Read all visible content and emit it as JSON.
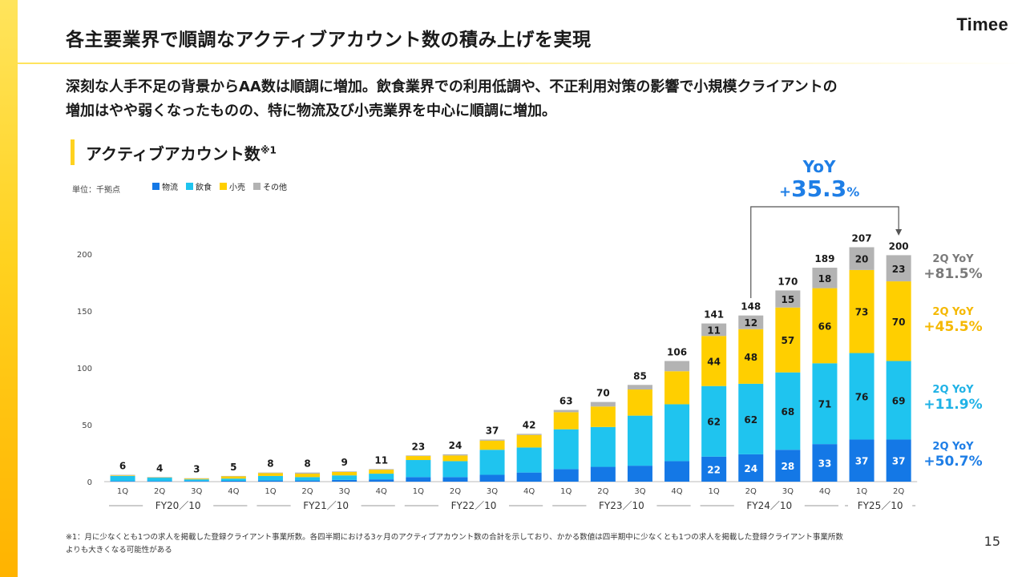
{
  "header": {
    "title": "各主要業界で順調なアクティブアカウント数の積み上げを実現",
    "logo": "Timee"
  },
  "lead": {
    "line1": "深刻な人手不足の背景からAA数は順調に増加。飲食業界での利用低調や、不正利用対策の影響で小規模クライアントの",
    "line2": "増加はやや弱くなったものの、特に物流及び小売業界を中心に順調に増加。"
  },
  "section": {
    "title": "アクティブアカウント数",
    "note": "※1"
  },
  "unit": "単位：千拠点",
  "colors": {
    "logistics": "#1478e6",
    "food": "#1fc4ef",
    "retail": "#ffcf00",
    "other": "#b3b3b3",
    "accent": "#ffd21f",
    "yoy": "#1e7ee6"
  },
  "yoy": {
    "label": "YoY",
    "plus": "+",
    "value": "35.3",
    "percent": "%"
  },
  "side_yoy": [
    {
      "q": "2Q YoY",
      "v": "+81.5%",
      "color": "#7a7a7a"
    },
    {
      "q": "2Q YoY",
      "v": "+45.5%",
      "color": "#f5b800"
    },
    {
      "q": "2Q YoY",
      "v": "+11.9%",
      "color": "#1fb2e6"
    },
    {
      "q": "2Q YoY",
      "v": "+50.7%",
      "color": "#1e7ee6"
    }
  ],
  "chart_data": {
    "type": "bar",
    "stacked": true,
    "ylim": [
      0,
      200
    ],
    "yticks": [
      0,
      50,
      100,
      150,
      200
    ],
    "legend_position": "top-left",
    "categories": [
      "1Q",
      "2Q",
      "3Q",
      "4Q",
      "1Q",
      "2Q",
      "3Q",
      "4Q",
      "1Q",
      "2Q",
      "3Q",
      "4Q",
      "1Q",
      "2Q",
      "3Q",
      "4Q",
      "1Q",
      "2Q",
      "3Q",
      "4Q",
      "1Q",
      "2Q"
    ],
    "groups": [
      {
        "label": "FY20／10",
        "count": 4
      },
      {
        "label": "FY21／10",
        "count": 4
      },
      {
        "label": "FY22／10",
        "count": 4
      },
      {
        "label": "FY23／10",
        "count": 4
      },
      {
        "label": "FY24／10",
        "count": 4
      },
      {
        "label": "FY25／10",
        "count": 2
      }
    ],
    "totals": [
      6,
      4,
      3,
      5,
      8,
      8,
      9,
      11,
      23,
      24,
      37,
      42,
      63,
      70,
      85,
      106,
      141,
      148,
      170,
      189,
      207,
      200
    ],
    "series": [
      {
        "name": "物流",
        "color": "#1478e6",
        "values": [
          0.5,
          0.5,
          0.5,
          0.7,
          1,
          1,
          1.5,
          2,
          4,
          4,
          6,
          8,
          11,
          13,
          14,
          18,
          22,
          24,
          28,
          33,
          37,
          37
        ],
        "labels_from_index": 16
      },
      {
        "name": "飲食",
        "color": "#1fc4ef",
        "values": [
          4.5,
          3,
          1.5,
          2,
          4,
          3,
          4,
          5,
          15,
          14,
          22,
          22,
          35,
          35,
          44,
          50,
          62,
          62,
          68,
          71,
          76,
          69
        ],
        "labels_from_index": 16
      },
      {
        "name": "小売",
        "color": "#ffcf00",
        "values": [
          0.5,
          0.3,
          0.7,
          2,
          2.5,
          3,
          3,
          3.5,
          3.5,
          5,
          8,
          11,
          15,
          18,
          23,
          29,
          44,
          48,
          57,
          66,
          73,
          70
        ],
        "labels_from_index": 16
      },
      {
        "name": "その他",
        "color": "#b3b3b3",
        "values": [
          0.5,
          0.2,
          0.3,
          0.3,
          0.5,
          1,
          0.5,
          0.5,
          0.5,
          1,
          1,
          1,
          2,
          4,
          4,
          9,
          11,
          12,
          15,
          18,
          20,
          23
        ],
        "labels_from_index": 16
      }
    ],
    "yoy_bracket": {
      "from_index": 17,
      "to_index": 21
    }
  },
  "footnote": {
    "line1": "※1：月に少なくとも1つの求人を掲載した登録クライアント事業所数。各四半期における3ヶ月のアクティブアカウント数の合計を示しており、かかる数値は四半期中に少なくとも1つの求人を掲載した登録クライアント事業所数",
    "line2": "よりも大きくなる可能性がある"
  },
  "page_number": "15"
}
